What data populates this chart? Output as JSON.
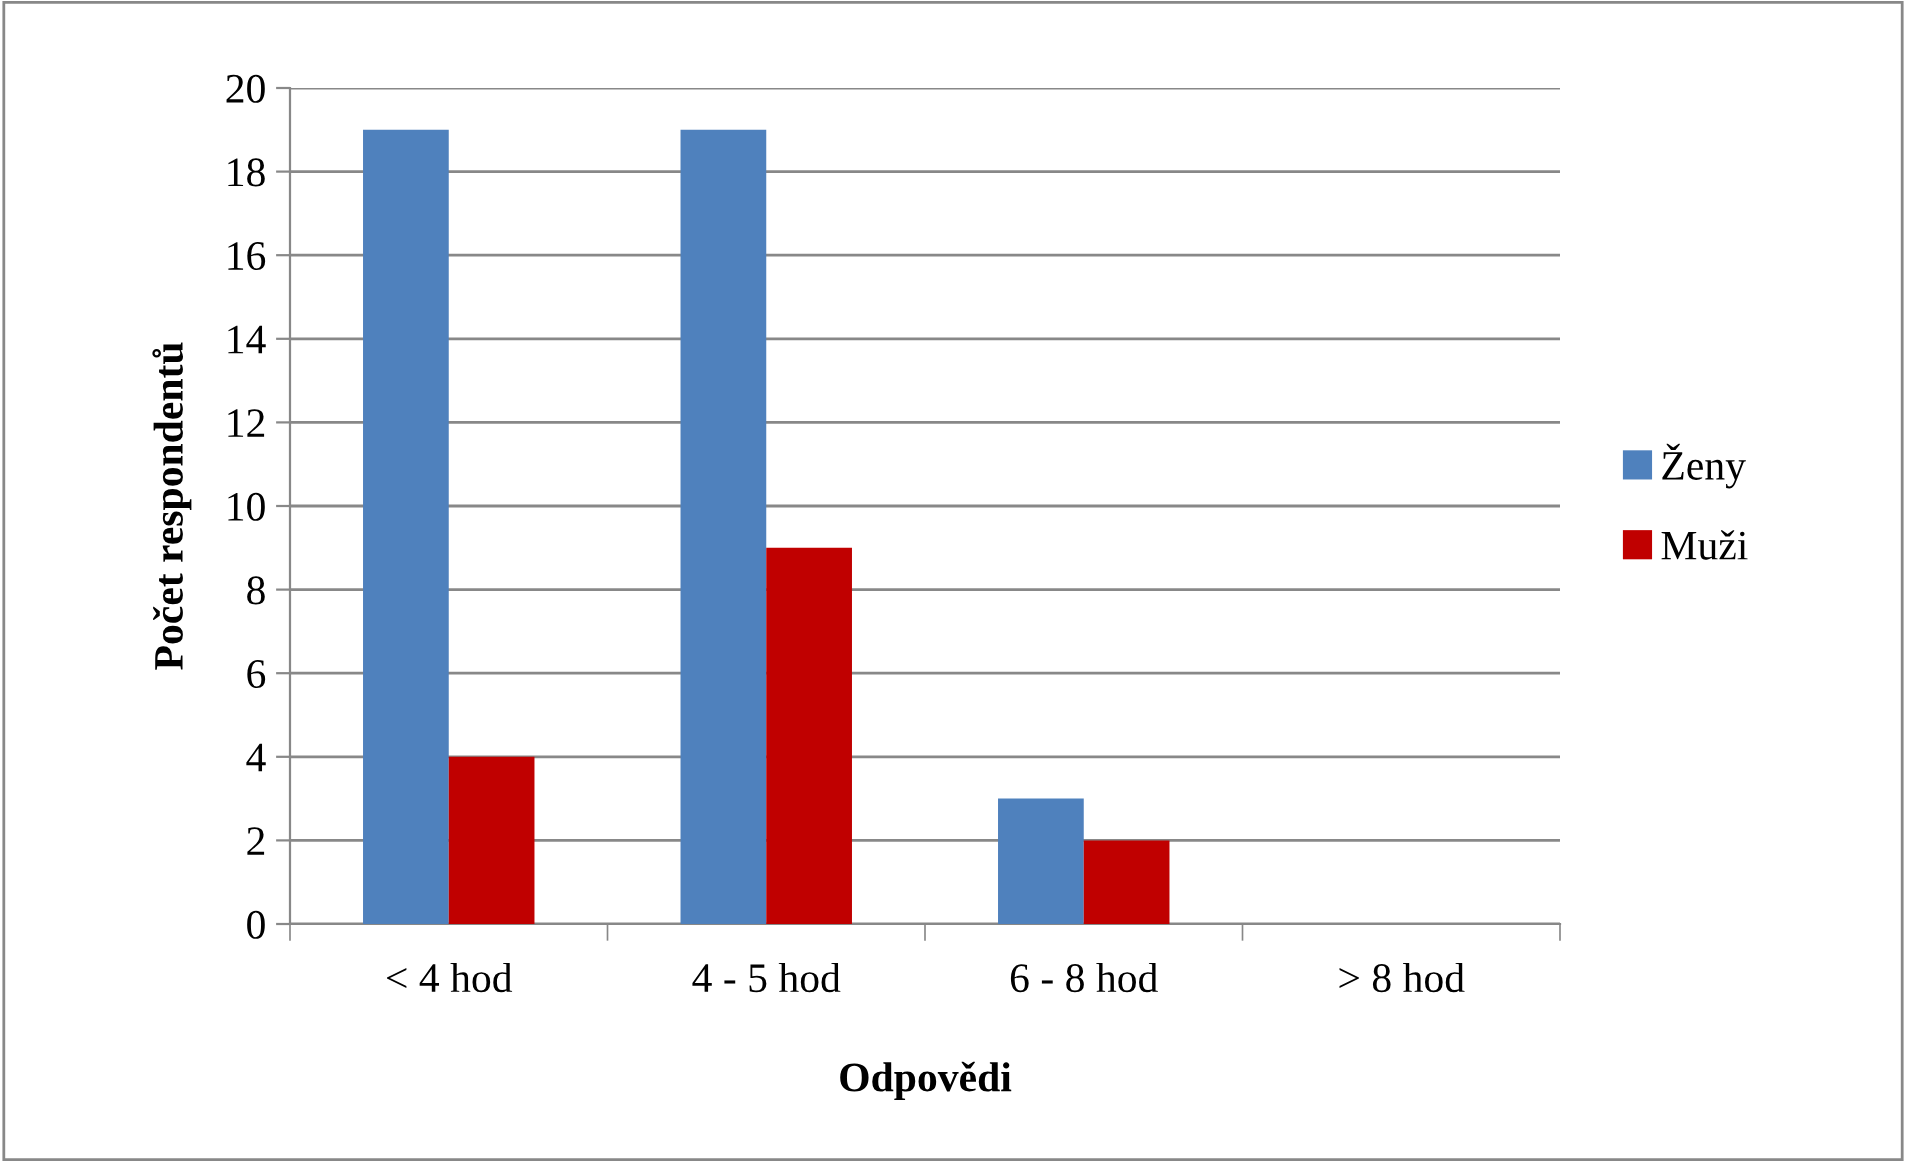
{
  "chart_data": {
    "type": "bar",
    "xlabel": "Odpovědi",
    "ylabel": "Počet respondentů",
    "categories": [
      "< 4 hod",
      "4 - 5 hod",
      "6 - 8 hod",
      "> 8 hod"
    ],
    "series": [
      {
        "name": "Ženy",
        "color": "#4f81bd",
        "values": [
          19,
          19,
          3,
          0
        ]
      },
      {
        "name": "Muži",
        "color": "#c00000",
        "values": [
          4,
          9,
          2,
          0
        ]
      }
    ],
    "ylim": [
      0,
      20
    ],
    "yticks": [
      0,
      2,
      4,
      6,
      8,
      10,
      12,
      14,
      16,
      18,
      20
    ],
    "grid": "y",
    "legend": "right"
  }
}
